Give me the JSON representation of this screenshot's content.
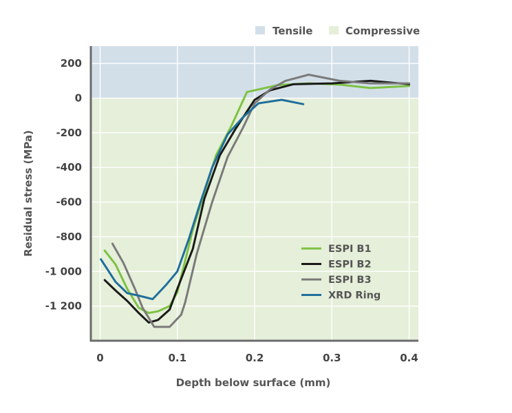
{
  "chart_data": {
    "type": "line",
    "xlabel": "Depth below surface (mm)",
    "ylabel": "Residual stress (MPa)",
    "xlim": [
      -0.012,
      0.412
    ],
    "ylim": [
      -1400,
      300
    ],
    "x_ticks": [
      0,
      0.1,
      0.2,
      0.3,
      0.4
    ],
    "x_tick_labels": [
      "0",
      "0.1",
      "0.2",
      "0.3",
      "0.4"
    ],
    "y_ticks": [
      200,
      0,
      -200,
      -400,
      -600,
      -800,
      -1000,
      -1200
    ],
    "y_tick_labels": [
      "200",
      "0",
      "-200",
      "-400",
      "-600",
      "-800",
      "-1 000",
      "-1 200"
    ],
    "grid": true,
    "regions": [
      {
        "name": "Tensile",
        "y_from": 0,
        "y_to": 300,
        "color": "#d3dfe8"
      },
      {
        "name": "Compressive",
        "y_from": -1400,
        "y_to": 0,
        "color": "#e5efd9"
      }
    ],
    "legend_position": "lower-right",
    "series": [
      {
        "name": "ESPI B1",
        "color": "#7dc242",
        "x": [
          0.006,
          0.02,
          0.035,
          0.05,
          0.063,
          0.075,
          0.09,
          0.1,
          0.12,
          0.15,
          0.17,
          0.19,
          0.21,
          0.23,
          0.27,
          0.31,
          0.35,
          0.4
        ],
        "y": [
          -880,
          -960,
          -1100,
          -1210,
          -1240,
          -1230,
          -1200,
          -1120,
          -760,
          -330,
          -160,
          35,
          55,
          75,
          85,
          78,
          58,
          70
        ]
      },
      {
        "name": "ESPI B2",
        "color": "#1a1a1a",
        "x": [
          0.006,
          0.02,
          0.035,
          0.05,
          0.063,
          0.075,
          0.09,
          0.1,
          0.12,
          0.135,
          0.155,
          0.175,
          0.2,
          0.22,
          0.25,
          0.3,
          0.35,
          0.4
        ],
        "y": [
          -1050,
          -1110,
          -1170,
          -1240,
          -1295,
          -1280,
          -1220,
          -1100,
          -870,
          -580,
          -330,
          -180,
          -10,
          45,
          80,
          85,
          100,
          80
        ]
      },
      {
        "name": "ESPI B3",
        "color": "#7a7a7a",
        "x": [
          0.016,
          0.03,
          0.045,
          0.055,
          0.07,
          0.09,
          0.105,
          0.11,
          0.125,
          0.145,
          0.165,
          0.185,
          0.2,
          0.22,
          0.24,
          0.27,
          0.31,
          0.35,
          0.4
        ],
        "y": [
          -840,
          -950,
          -1100,
          -1210,
          -1320,
          -1320,
          -1250,
          -1180,
          -900,
          -600,
          -340,
          -170,
          -30,
          50,
          100,
          135,
          100,
          85,
          85
        ]
      },
      {
        "name": "XRD Ring",
        "color": "#1f6e9c",
        "x": [
          0.001,
          0.02,
          0.035,
          0.05,
          0.068,
          0.085,
          0.1,
          0.115,
          0.13,
          0.145,
          0.165,
          0.185,
          0.205,
          0.235,
          0.263
        ],
        "y": [
          -930,
          -1060,
          -1125,
          -1140,
          -1160,
          -1080,
          -1000,
          -810,
          -600,
          -400,
          -210,
          -110,
          -30,
          -10,
          -35
        ]
      }
    ]
  }
}
